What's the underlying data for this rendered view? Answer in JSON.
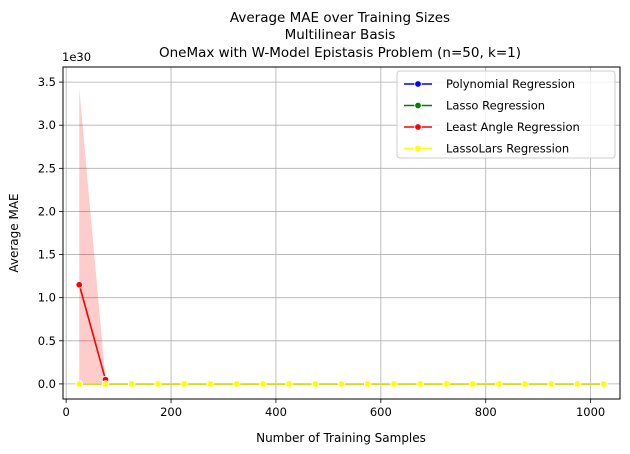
{
  "chart_data": {
    "type": "line",
    "title_lines": [
      "Average MAE over Training Sizes",
      "Multilinear Basis",
      "OneMax with W-Model Epistasis Problem (n=50, k=1)"
    ],
    "xlabel": "Number of Training Samples",
    "ylabel": "Average MAE",
    "y_offset_label": "1e30",
    "xlim": [
      -6,
      1056
    ],
    "ylim": [
      -0.175,
      3.675
    ],
    "xticks": [
      0,
      200,
      400,
      600,
      800,
      1000
    ],
    "xtick_labels": [
      "0",
      "200",
      "400",
      "600",
      "800",
      "1000"
    ],
    "yticks": [
      0.0,
      0.5,
      1.0,
      1.5,
      2.0,
      2.5,
      3.0,
      3.5
    ],
    "ytick_labels": [
      "0.0",
      "0.5",
      "1.0",
      "1.5",
      "2.0",
      "2.5",
      "3.0",
      "3.5"
    ],
    "grid": true,
    "legend_position": "top-right",
    "x": [
      25,
      75,
      125,
      175,
      225,
      275,
      325,
      375,
      425,
      475,
      525,
      575,
      625,
      675,
      725,
      775,
      825,
      875,
      925,
      975,
      1025
    ],
    "series": [
      {
        "name": "Polynomial Regression",
        "color": "#0000ff",
        "x": [
          25,
          75,
          125,
          175,
          225,
          275,
          325,
          375,
          425,
          475,
          525,
          575,
          625,
          675,
          725,
          775,
          825,
          875,
          925,
          975,
          1025
        ],
        "values": [
          0,
          0,
          0,
          0,
          0,
          0,
          0,
          0,
          0,
          0,
          0,
          0,
          0,
          0,
          0,
          0,
          0,
          0,
          0,
          0,
          0
        ]
      },
      {
        "name": "Lasso Regression",
        "color": "#008000",
        "x": [
          25,
          75,
          125,
          175,
          225,
          275,
          325,
          375,
          425,
          475,
          525,
          575,
          625,
          675,
          725,
          775,
          825,
          875,
          925,
          975,
          1025
        ],
        "values": [
          0,
          0,
          0,
          0,
          0,
          0,
          0,
          0,
          0,
          0,
          0,
          0,
          0,
          0,
          0,
          0,
          0,
          0,
          0,
          0,
          0
        ]
      },
      {
        "name": "Least Angle Regression",
        "color": "#ff0000",
        "x": [
          25,
          75
        ],
        "values": [
          1.15,
          0.05
        ],
        "ci_lower": [
          0.0,
          0.0
        ],
        "ci_upper": [
          3.43,
          0.05
        ]
      },
      {
        "name": "LassoLars Regression",
        "color": "#ffff00",
        "x": [
          25,
          75,
          125,
          175,
          225,
          275,
          325,
          375,
          425,
          475,
          525,
          575,
          625,
          675,
          725,
          775,
          825,
          875,
          925,
          975,
          1025
        ],
        "values": [
          0,
          0,
          0,
          0,
          0,
          0,
          0,
          0,
          0,
          0,
          0,
          0,
          0,
          0,
          0,
          0,
          0,
          0,
          0,
          0,
          0
        ]
      }
    ]
  }
}
